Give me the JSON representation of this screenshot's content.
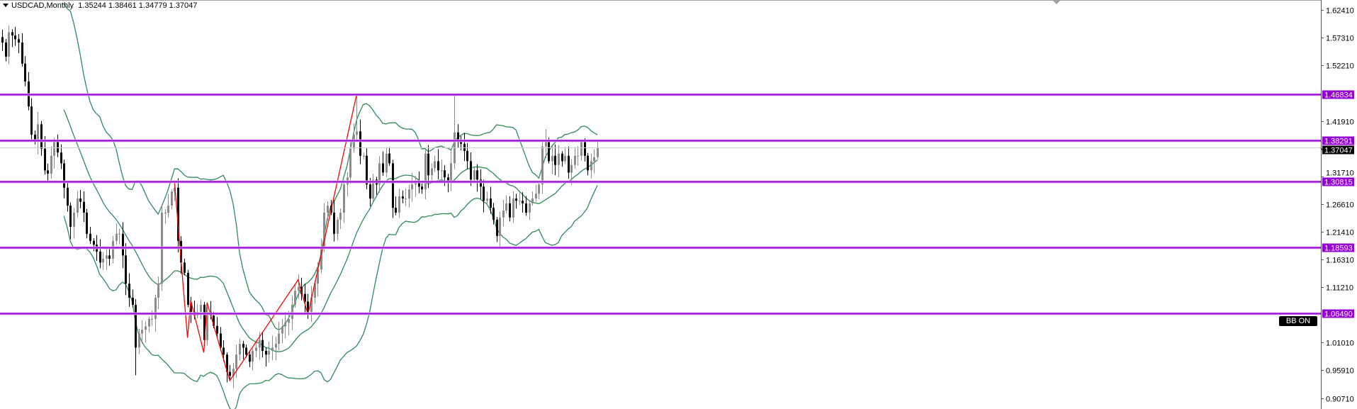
{
  "header": {
    "symbol_timeframe": "USDCAD,Monthly",
    "ohlc": "1.35244 1.38461 1.34779 1.37047"
  },
  "indicator_label": "BB ON",
  "colors": {
    "level_line": "#9400D3",
    "bollinger": "#2E8B57",
    "zigzag": "#FF0000",
    "bull_candle": "#8c8c8c",
    "bear_candle": "#000000",
    "current_price_bg": "#000000"
  },
  "chart_data": {
    "type": "candlestick",
    "symbol": "USDCAD",
    "timeframe": "Monthly",
    "ylim": [
      0.888,
      1.635
    ],
    "y_ticks": [
      "1.62410",
      "1.57310",
      "1.52210",
      "1.41910",
      "1.31710",
      "1.26610",
      "1.21410",
      "1.16310",
      "1.11210",
      "1.01010",
      "0.95910",
      "0.90710"
    ],
    "last_bar": {
      "open": 1.35244,
      "high": 1.38461,
      "low": 1.34779,
      "close": 1.37047
    },
    "current_price": "1.37047",
    "closes": [
      1.564,
      1.538,
      1.583,
      1.577,
      1.57,
      1.564,
      1.525,
      1.492,
      1.446,
      1.394,
      1.381,
      1.413,
      1.368,
      1.328,
      1.322,
      1.355,
      1.381,
      1.361,
      1.341,
      1.296,
      1.263,
      1.224,
      1.25,
      1.276,
      1.27,
      1.25,
      1.211,
      1.198,
      1.191,
      1.178,
      1.158,
      1.165,
      1.171,
      1.165,
      1.198,
      1.211,
      1.211,
      1.171,
      1.119,
      1.093,
      1.08,
      1.001,
      1.027,
      1.034,
      1.04,
      1.054,
      1.054,
      1.093,
      1.119,
      1.25,
      1.25,
      1.263,
      1.289,
      1.296,
      1.198,
      1.158,
      1.139,
      1.08,
      1.067,
      1.06,
      1.067,
      1.08,
      1.015,
      1.067,
      1.06,
      1.041,
      1.027,
      1.001,
      0.988,
      0.956,
      0.949,
      0.962,
      0.988,
      1.008,
      1.001,
      0.988,
      0.975,
      0.995,
      1.001,
      1.015,
      0.995,
      0.988,
      0.995,
      1.001,
      1.008,
      1.027,
      1.04,
      1.047,
      1.054,
      1.08,
      1.106,
      1.113,
      1.1,
      1.086,
      1.067,
      1.093,
      1.119,
      1.145,
      1.185,
      1.25,
      1.263,
      1.25,
      1.211,
      1.237,
      1.25,
      1.302,
      1.315,
      1.368,
      1.394,
      1.4,
      1.355,
      1.355,
      1.302,
      1.276,
      1.311,
      1.302,
      1.341,
      1.324,
      1.359,
      1.341,
      1.259,
      1.25,
      1.28,
      1.276,
      1.276,
      1.293,
      1.302,
      1.306,
      1.298,
      1.293,
      1.359,
      1.319,
      1.332,
      1.345,
      1.328,
      1.328,
      1.315,
      1.306,
      1.341,
      1.398,
      1.385,
      1.377,
      1.364,
      1.345,
      1.311,
      1.328,
      1.311,
      1.298,
      1.272,
      1.276,
      1.259,
      1.237,
      1.207,
      1.241,
      1.254,
      1.267,
      1.241,
      1.276,
      1.272,
      1.272,
      1.267,
      1.25,
      1.267,
      1.276,
      1.285,
      1.302,
      1.372,
      1.381,
      1.345,
      1.355,
      1.338,
      1.359,
      1.345,
      1.355,
      1.324,
      1.338,
      1.355,
      1.355,
      1.381,
      1.355,
      1.328,
      1.345,
      1.35244,
      1.37047
    ],
    "notable_highs": [
      {
        "index": 109,
        "high": 1.46834
      },
      {
        "index": 139,
        "high": 1.46834
      },
      {
        "index": 53,
        "high": 1.306
      }
    ],
    "notable_lows": [
      {
        "index": 70,
        "low": 0.94
      },
      {
        "index": 41,
        "low": 0.95
      }
    ],
    "horizontal_levels": [
      "1.46834",
      "1.38291",
      "1.30815",
      "1.18593",
      "1.06490"
    ],
    "bollinger_bands": {
      "period": 20,
      "deviation": 2
    },
    "zigzag": [
      {
        "index": 53,
        "price": 1.306
      },
      {
        "index": 57,
        "price": 1.019
      },
      {
        "index": 58,
        "price": 1.088
      },
      {
        "index": 62,
        "price": 0.992
      },
      {
        "index": 63,
        "price": 1.084
      },
      {
        "index": 70,
        "price": 0.94
      },
      {
        "index": 91,
        "price": 1.126
      },
      {
        "index": 94,
        "price": 1.062
      },
      {
        "index": 109,
        "price": 1.468
      }
    ],
    "grid": false
  }
}
